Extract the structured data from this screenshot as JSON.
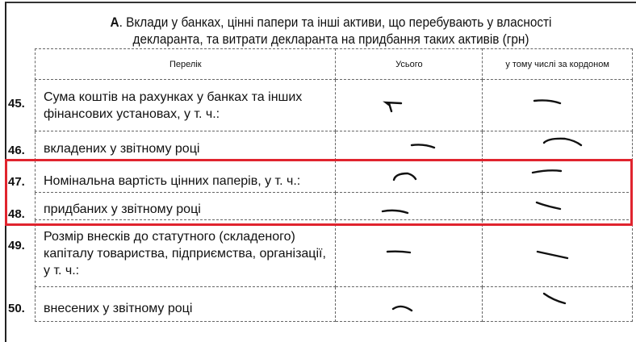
{
  "section": {
    "letter": "А",
    "title_rest": ". Вклади у банках, цінні папери та інші активи, що перебувають у власності",
    "title_line2": "декларанта, та витрати декларанта на придбання таких активів (грн)"
  },
  "table": {
    "headers": [
      "Перелік",
      "Усього",
      "у тому числі за кордоном"
    ],
    "rows": [
      {
        "num": "45.",
        "label": "Сума коштів на рахунках у банках та інших фінансових установах, у т. ч.:",
        "total": "—",
        "abroad": "—"
      },
      {
        "num": "46.",
        "label": "вкладених у звітному році",
        "total": "—",
        "abroad": "—"
      },
      {
        "num": "47.",
        "label": "Номінальна вартість цінних паперів, у т. ч.:",
        "total": "—",
        "abroad": "—"
      },
      {
        "num": "48.",
        "label": "придбаних у звітному році",
        "total": "—",
        "abroad": "—"
      },
      {
        "num": "49.",
        "label": "Розмір внесків до статутного (складеного) капіталу товариства, підприємства, організації, у т. ч.:",
        "total": "—",
        "abroad": "—"
      },
      {
        "num": "50.",
        "label": "внесених у звітному році",
        "total": "—",
        "abroad": "—"
      }
    ]
  },
  "highlight_color": "#e0242e"
}
